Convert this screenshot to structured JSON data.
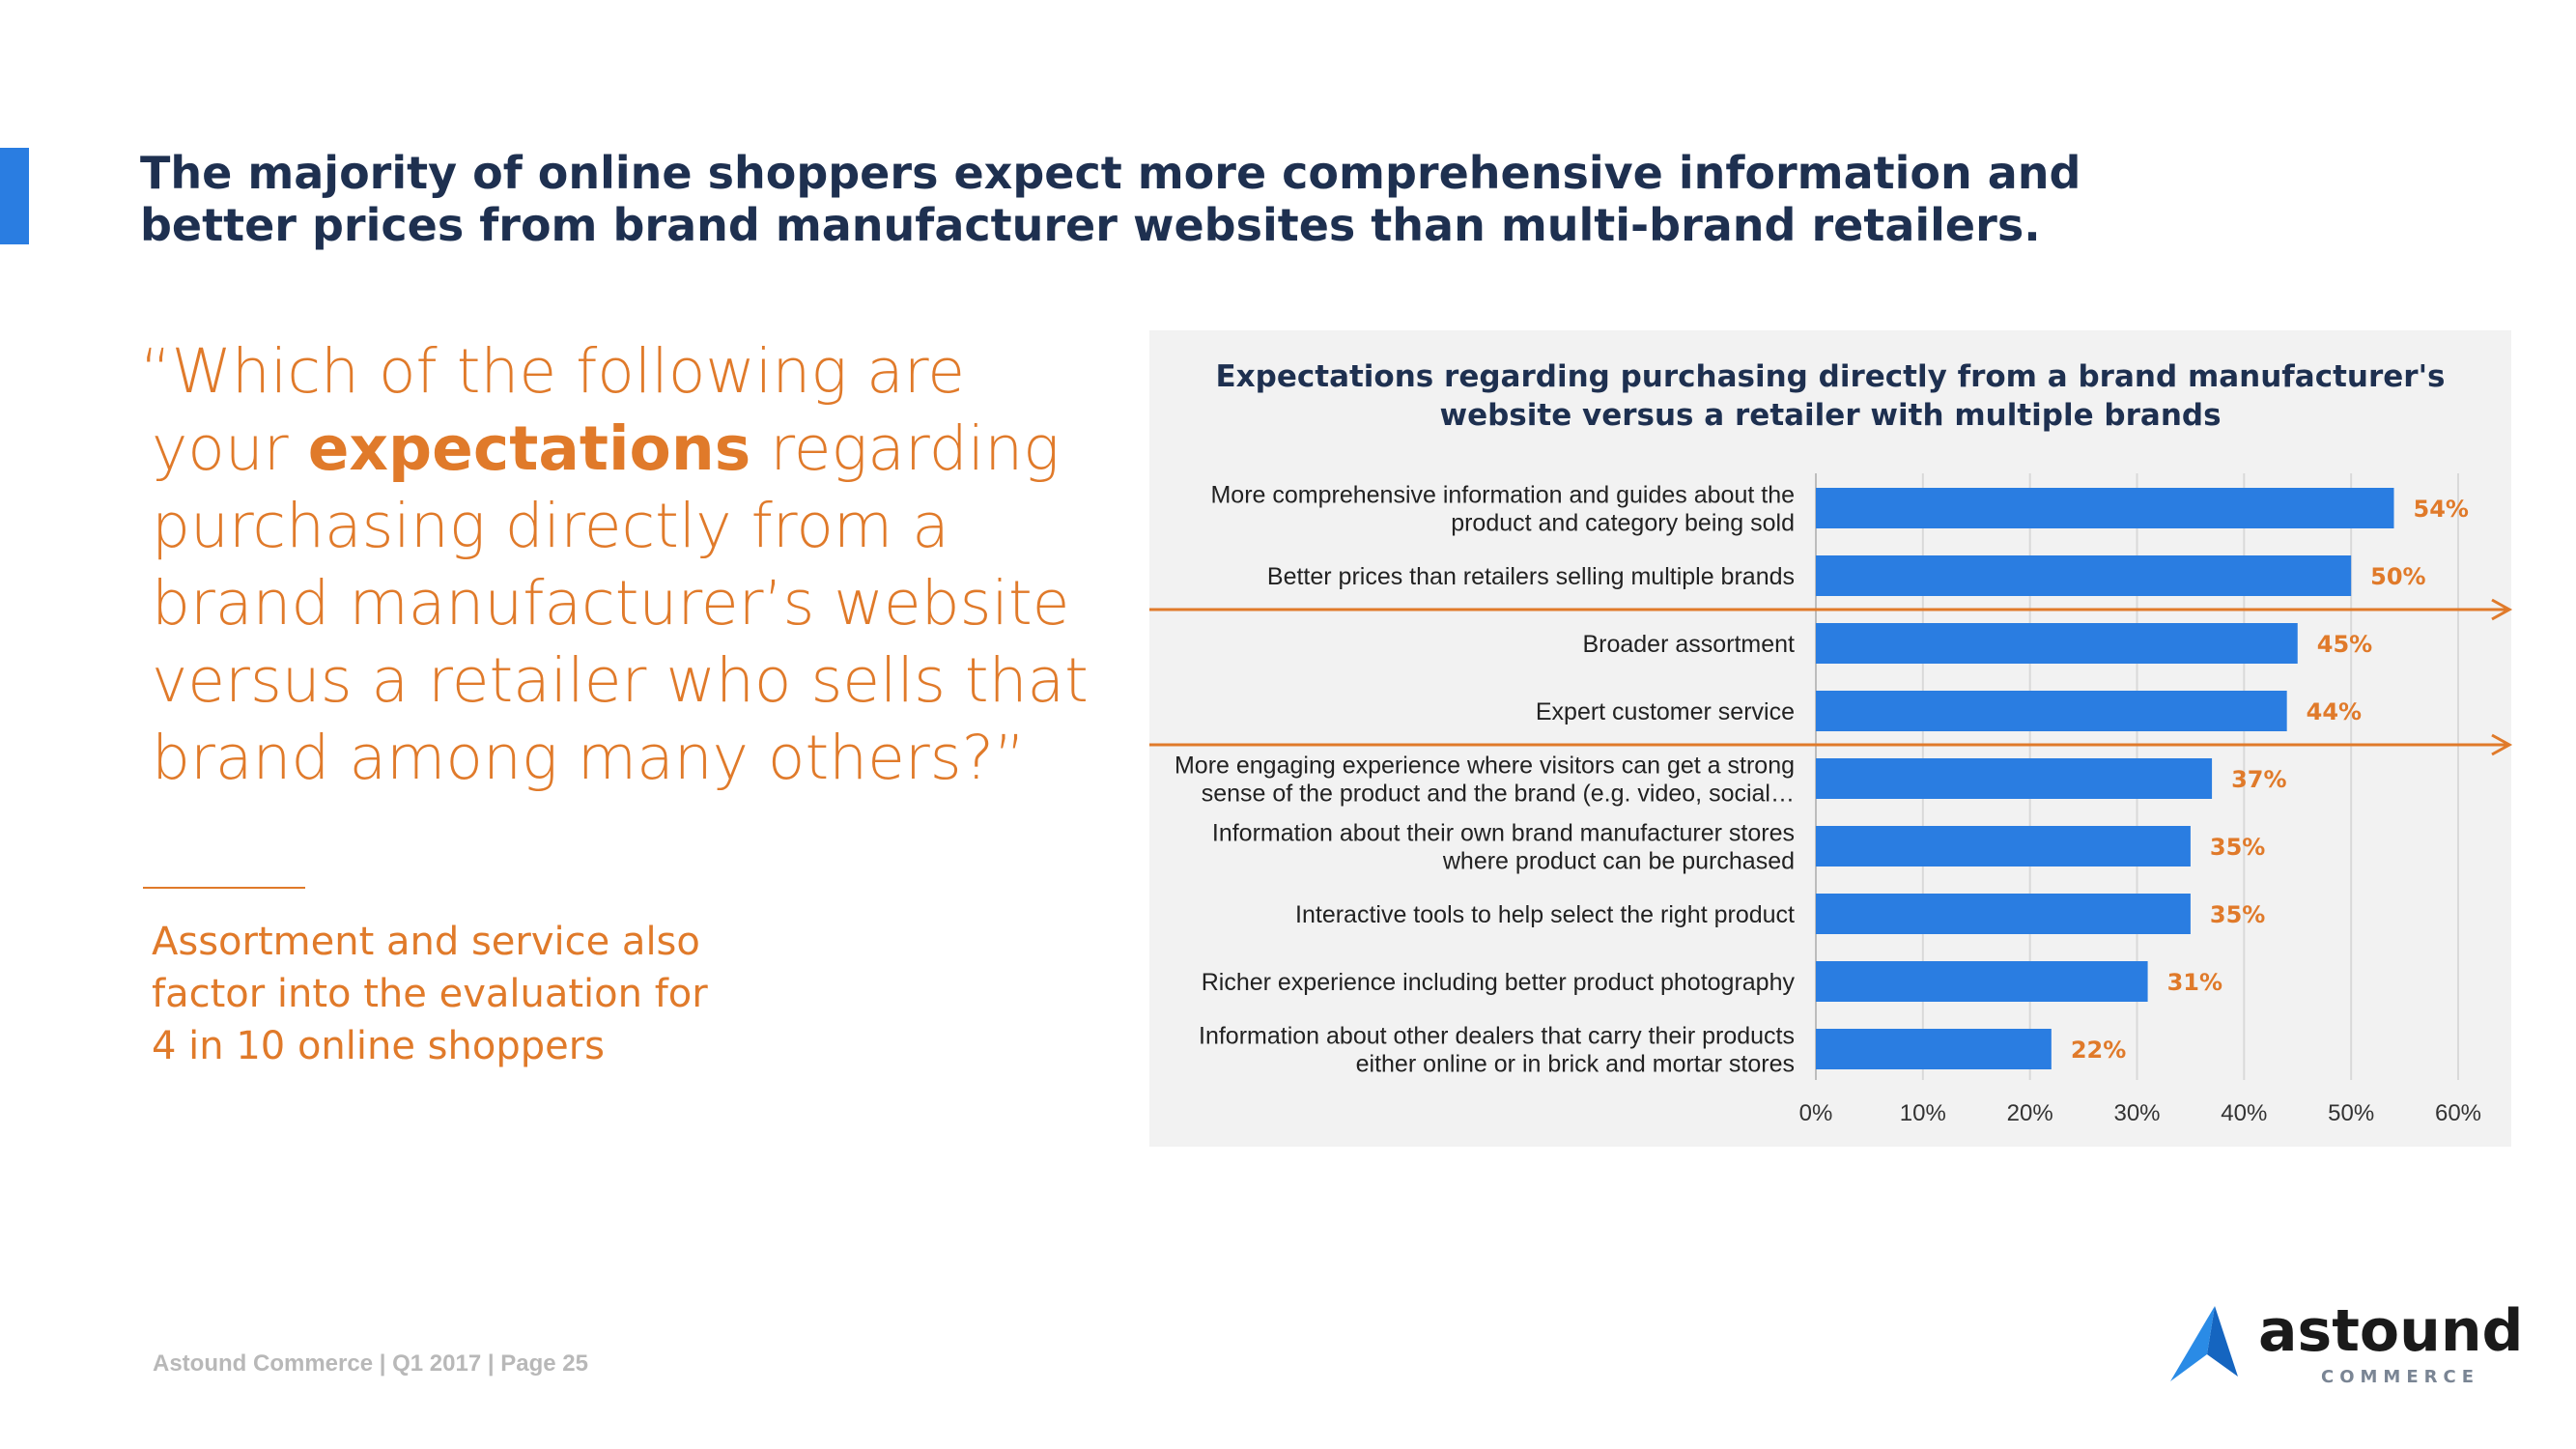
{
  "headline": {
    "line1": "The majority of online shoppers expect more comprehensive information and",
    "line2": "better prices from brand manufacturer websites than multi-brand retailers."
  },
  "question": {
    "line1": "“Which of the following are",
    "line2_pre": "your ",
    "line2_em": "expectations",
    "line2_post": " regarding",
    "line3": "purchasing directly from a",
    "line4": "brand manufacturer’s website",
    "line5": "versus a retailer who sells that",
    "line6": "brand among many others?”"
  },
  "note": {
    "line1": "Assortment and service also",
    "line2": "factor into the evaluation for",
    "line3": "4 in 10 online shoppers"
  },
  "footer": {
    "text": "Astound Commerce | Q1 2017 | Page 25"
  },
  "logo": {
    "word": "astound",
    "sub": "COMMERCE"
  },
  "colors": {
    "bar": "#2a7de1",
    "value_label": "#e07a2a",
    "arrow": "#e07a2a",
    "headline": "#1e3050",
    "panel": "#f2f2f2"
  },
  "chart_data": {
    "type": "bar",
    "orientation": "horizontal",
    "title": [
      "Expectations regarding purchasing directly from a brand manufacturer's",
      "website versus a retailer with multiple brands"
    ],
    "categories": [
      [
        "More comprehensive information and guides about the",
        "product and category being sold"
      ],
      [
        "Better prices than retailers selling multiple brands"
      ],
      [
        "Broader assortment"
      ],
      [
        "Expert customer service"
      ],
      [
        "More engaging experience where visitors can get a strong",
        "sense of the product and the brand (e.g. video, social…"
      ],
      [
        "Information about their own brand manufacturer stores",
        "where product can be purchased"
      ],
      [
        "Interactive tools to help select the right product"
      ],
      [
        "Richer experience including better product photography"
      ],
      [
        "Information about other dealers that carry their products",
        "either online or in brick and mortar stores"
      ]
    ],
    "values": [
      54,
      50,
      45,
      44,
      37,
      35,
      35,
      31,
      22
    ],
    "value_labels": [
      "54%",
      "50%",
      "45%",
      "44%",
      "37%",
      "35%",
      "35%",
      "31%",
      "22%"
    ],
    "xlim": [
      0,
      60
    ],
    "ticks": [
      0,
      10,
      20,
      30,
      40,
      50,
      60
    ],
    "tick_labels": [
      "0%",
      "10%",
      "20%",
      "30%",
      "40%",
      "50%",
      "60%"
    ],
    "grid": true,
    "highlight_after_categories": [
      2,
      4
    ]
  }
}
